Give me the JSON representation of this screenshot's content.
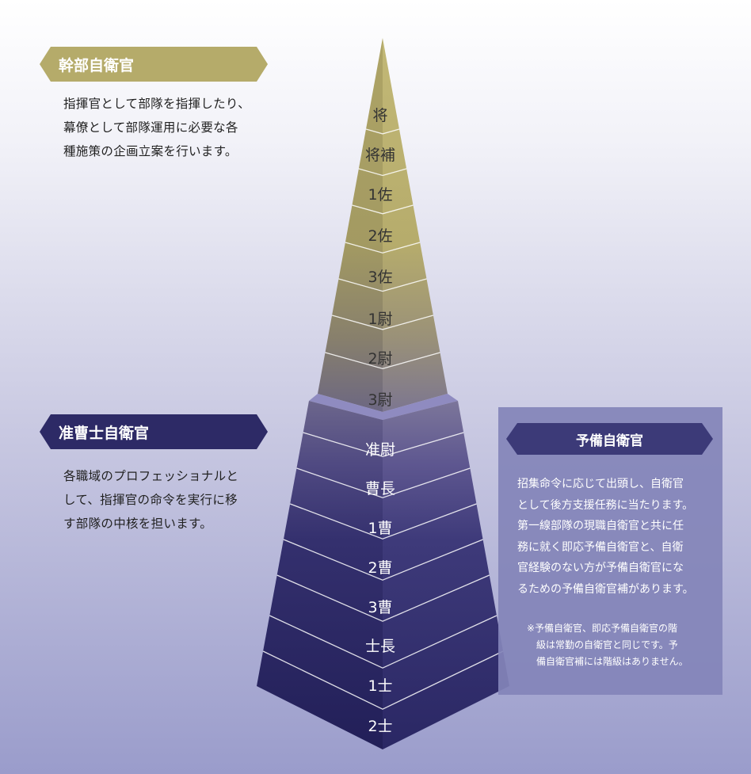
{
  "officer": {
    "title": "幹部自衛官",
    "desc": "指揮官として部隊を指揮したり、\n幕僚として部隊運用に必要な各\n種施策の企画立案を行います。"
  },
  "nco": {
    "title": "准曹士自衛官",
    "desc": "各職域のプロフェッショナルと\nして、指揮官の命令を実行に移\nす部隊の中核を担います。"
  },
  "reserve": {
    "title": "予備自衛官",
    "desc": "招集命令に応じて出頭し、自衛官\nとして後方支援任務に当たります。\n第一線部隊の現職自衛官と共に任\n務に就く即応予備自衛官と、自衛\n官経験のない方が予備自衛官にな\nるための予備自衛官補があります。",
    "note": "※予備自衛官、即応予備自衛官の階\n　級は常勤の自衛官と同じです。予\n　備自衛官補には階級はありません。"
  },
  "ranks_upper": [
    "将",
    "将補",
    "1佐",
    "2佐",
    "3佐",
    "1尉",
    "2尉",
    "3尉"
  ],
  "ranks_lower": [
    "准尉",
    "曹長",
    "1曹",
    "2曹",
    "3曹",
    "士長",
    "1士",
    "2士"
  ],
  "colors": {
    "officer_gold": "#b5ab6a",
    "nco_navy": "#2d2a66",
    "reserve_panel": "#8384b9"
  }
}
